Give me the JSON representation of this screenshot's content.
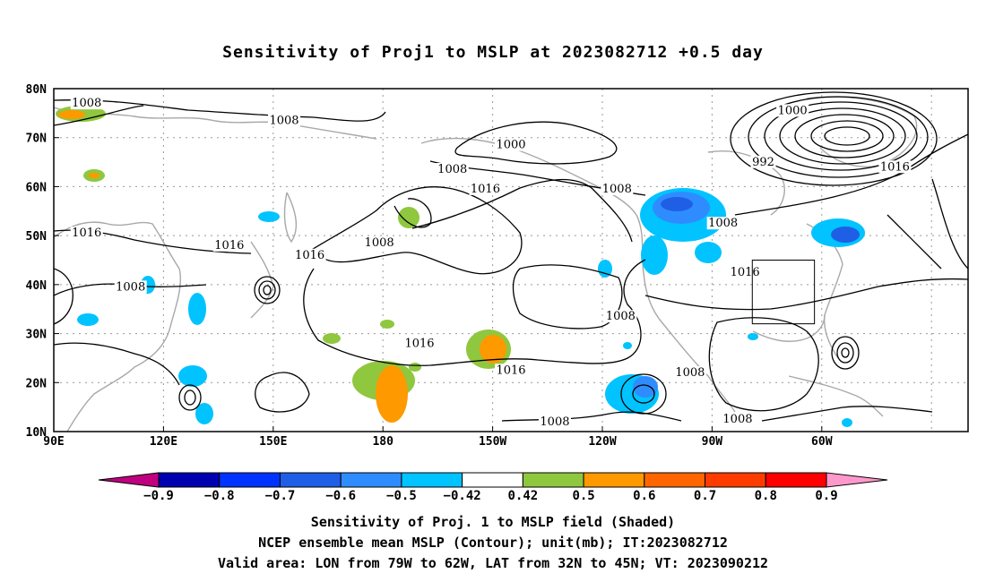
{
  "title": "Sensitivity of Proj1 to MSLP at 2023082712 +0.5 day",
  "axes": {
    "lat_ticks": [
      "80N",
      "70N",
      "60N",
      "50N",
      "40N",
      "30N",
      "20N",
      "10N"
    ],
    "lon_ticks": [
      "90E",
      "120E",
      "150E",
      "180",
      "150W",
      "120W",
      "90W",
      "60W"
    ]
  },
  "colorbar": {
    "labels": [
      "-0.9",
      "-0.8",
      "-0.7",
      "-0.6",
      "-0.5",
      "-0.42",
      "0.42",
      "0.5",
      "0.6",
      "0.7",
      "0.8",
      "0.9"
    ],
    "colors": [
      "#c0007f",
      "#0000b0",
      "#0033ff",
      "#1f5fe6",
      "#2f8cff",
      "#00c3ff",
      "#ffffff",
      "#8fc73e",
      "#ff9900",
      "#ff6600",
      "#ff3c00",
      "#ff0000",
      "#ff99cc"
    ]
  },
  "contour_labels": [
    {
      "text": "1008",
      "lon": 99,
      "lat": 76.5
    },
    {
      "text": "1008",
      "lon": 153,
      "lat": 73
    },
    {
      "text": "1000",
      "lon": 215,
      "lat": 68
    },
    {
      "text": "1008",
      "lon": 199,
      "lat": 63
    },
    {
      "text": "1016",
      "lon": 208,
      "lat": 59
    },
    {
      "text": "1008",
      "lon": 244,
      "lat": 59
    },
    {
      "text": "1000",
      "lon": 292,
      "lat": 75
    },
    {
      "text": "992",
      "lon": 284,
      "lat": 64.5
    },
    {
      "text": "1016",
      "lon": 320,
      "lat": 63.5
    },
    {
      "text": "1016",
      "lon": 99,
      "lat": 50
    },
    {
      "text": "1016",
      "lon": 138,
      "lat": 47.5
    },
    {
      "text": "1008",
      "lon": 179,
      "lat": 48
    },
    {
      "text": "1016",
      "lon": 160,
      "lat": 45.5
    },
    {
      "text": "1008",
      "lon": 273,
      "lat": 52
    },
    {
      "text": "1016",
      "lon": 279,
      "lat": 42
    },
    {
      "text": "1008",
      "lon": 111,
      "lat": 39
    },
    {
      "text": "1008",
      "lon": 245,
      "lat": 33
    },
    {
      "text": "1016",
      "lon": 190,
      "lat": 27.5
    },
    {
      "text": "1016",
      "lon": 215,
      "lat": 22
    },
    {
      "text": "1008",
      "lon": 264,
      "lat": 21.5
    },
    {
      "text": "1008",
      "lon": 227,
      "lat": 11.5
    },
    {
      "text": "1008",
      "lon": 277,
      "lat": 12
    }
  ],
  "valid_area": {
    "lon_min_w": 79,
    "lon_max_w": 62,
    "lat_min": 32,
    "lat_max": 45
  },
  "captions": [
    "Sensitivity of Proj. 1 to MSLP field (Shaded)",
    "NCEP ensemble mean MSLP (Contour); unit(mb); IT:2023082712",
    "Valid area: LON from 79W to 62W, LAT from 32N to 45N; VT: 2023090212"
  ]
}
